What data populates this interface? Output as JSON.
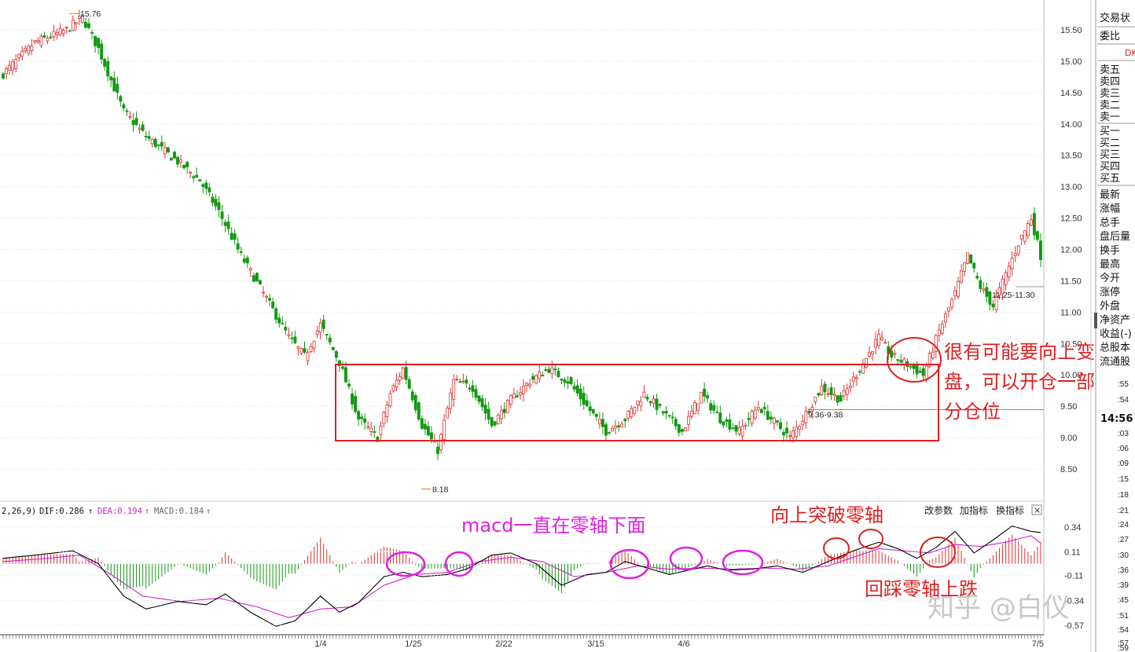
{
  "chart_data": {
    "type": "candlestick",
    "price_axis": {
      "ticks": [
        "15.50",
        "15.00",
        "14.50",
        "14.00",
        "13.50",
        "13.00",
        "12.50",
        "12.00",
        "11.50",
        "11.00",
        "10.50",
        "10.00",
        "9.50",
        "9.00",
        "8.50"
      ],
      "range": [
        8.15,
        15.85
      ]
    },
    "x_tick_labels": [
      "1/4",
      "1/25",
      "2/22",
      "3/15",
      "4/6",
      "7/5"
    ],
    "price_key_points": [
      [
        0,
        14.8
      ],
      [
        10,
        15.3
      ],
      [
        20,
        15.5
      ],
      [
        25,
        15.7
      ],
      [
        30,
        15.2
      ],
      [
        38,
        14.2
      ],
      [
        45,
        13.8
      ],
      [
        55,
        13.4
      ],
      [
        62,
        13.1
      ],
      [
        68,
        12.6
      ],
      [
        75,
        11.9
      ],
      [
        82,
        11.3
      ],
      [
        90,
        10.6
      ],
      [
        95,
        10.3
      ],
      [
        100,
        10.8
      ],
      [
        106,
        10.2
      ],
      [
        112,
        9.3
      ],
      [
        118,
        9.0
      ],
      [
        122,
        9.7
      ],
      [
        126,
        10.1
      ],
      [
        132,
        9.2
      ],
      [
        137,
        8.8
      ],
      [
        142,
        9.9
      ],
      [
        148,
        9.8
      ],
      [
        154,
        9.2
      ],
      [
        160,
        9.6
      ],
      [
        166,
        9.9
      ],
      [
        172,
        10.1
      ],
      [
        178,
        9.9
      ],
      [
        184,
        9.5
      ],
      [
        190,
        9.1
      ],
      [
        196,
        9.3
      ],
      [
        202,
        9.7
      ],
      [
        208,
        9.4
      ],
      [
        214,
        9.1
      ],
      [
        220,
        9.7
      ],
      [
        226,
        9.3
      ],
      [
        232,
        9.1
      ],
      [
        238,
        9.5
      ],
      [
        244,
        9.2
      ],
      [
        248,
        9.0
      ],
      [
        252,
        9.3
      ],
      [
        258,
        9.8
      ],
      [
        264,
        9.6
      ],
      [
        270,
        10.1
      ],
      [
        276,
        10.6
      ],
      [
        280,
        10.3
      ],
      [
        284,
        10.2
      ],
      [
        290,
        10.0
      ],
      [
        295,
        10.7
      ],
      [
        300,
        11.3
      ],
      [
        304,
        11.9
      ],
      [
        308,
        11.4
      ],
      [
        312,
        11.1
      ],
      [
        316,
        11.6
      ],
      [
        320,
        12.1
      ],
      [
        324,
        12.5
      ],
      [
        327,
        11.9
      ]
    ],
    "marks": [
      {
        "label": "15.76",
        "price": 15.76
      },
      {
        "label": "8.18",
        "price": 8.18
      },
      {
        "label": "9.36-9.38",
        "price": 9.37
      },
      {
        "label": "11.25-11.30",
        "price": 11.28
      }
    ],
    "box_price_range": [
      9.0,
      10.13
    ],
    "macd": {
      "label_params": "2,26,9)",
      "dif_label": "DIF:0.286",
      "dea_label": "DEA:0.194",
      "macd_label": "MACD:0.184",
      "axis_ticks": [
        "0.34",
        "0.11",
        "-0.11",
        "-0.34",
        "-0.57"
      ],
      "range": [
        -0.6,
        0.42
      ],
      "dif_key_points": [
        [
          0,
          0.05
        ],
        [
          10,
          0.08
        ],
        [
          22,
          0.12
        ],
        [
          30,
          0.0
        ],
        [
          38,
          -0.3
        ],
        [
          45,
          -0.42
        ],
        [
          55,
          -0.35
        ],
        [
          64,
          -0.38
        ],
        [
          70,
          -0.28
        ],
        [
          78,
          -0.45
        ],
        [
          86,
          -0.58
        ],
        [
          92,
          -0.53
        ],
        [
          100,
          -0.3
        ],
        [
          106,
          -0.45
        ],
        [
          112,
          -0.36
        ],
        [
          120,
          -0.12
        ],
        [
          126,
          -0.08
        ],
        [
          132,
          -0.12
        ],
        [
          140,
          -0.1
        ],
        [
          146,
          -0.05
        ],
        [
          154,
          0.08
        ],
        [
          160,
          0.1
        ],
        [
          168,
          0.0
        ],
        [
          176,
          -0.2
        ],
        [
          184,
          -0.1
        ],
        [
          190,
          -0.08
        ],
        [
          196,
          0.02
        ],
        [
          202,
          -0.03
        ],
        [
          210,
          -0.1
        ],
        [
          216,
          -0.06
        ],
        [
          222,
          -0.02
        ],
        [
          228,
          -0.06
        ],
        [
          236,
          -0.05
        ],
        [
          244,
          -0.02
        ],
        [
          252,
          -0.08
        ],
        [
          260,
          0.02
        ],
        [
          268,
          0.12
        ],
        [
          276,
          0.2
        ],
        [
          282,
          0.14
        ],
        [
          288,
          0.05
        ],
        [
          294,
          0.15
        ],
        [
          300,
          0.3
        ],
        [
          306,
          0.1
        ],
        [
          312,
          0.22
        ],
        [
          318,
          0.35
        ],
        [
          324,
          0.3
        ],
        [
          327,
          0.29
        ]
      ],
      "dea_key_points": [
        [
          0,
          0.02
        ],
        [
          14,
          0.05
        ],
        [
          24,
          0.08
        ],
        [
          34,
          -0.1
        ],
        [
          44,
          -0.3
        ],
        [
          56,
          -0.35
        ],
        [
          68,
          -0.32
        ],
        [
          80,
          -0.4
        ],
        [
          90,
          -0.5
        ],
        [
          100,
          -0.42
        ],
        [
          110,
          -0.4
        ],
        [
          120,
          -0.2
        ],
        [
          130,
          -0.1
        ],
        [
          140,
          -0.08
        ],
        [
          150,
          0.02
        ],
        [
          160,
          0.06
        ],
        [
          170,
          0.02
        ],
        [
          180,
          -0.12
        ],
        [
          190,
          -0.08
        ],
        [
          200,
          -0.02
        ],
        [
          210,
          -0.05
        ],
        [
          220,
          -0.04
        ],
        [
          230,
          -0.05
        ],
        [
          240,
          -0.04
        ],
        [
          250,
          -0.05
        ],
        [
          260,
          -0.02
        ],
        [
          268,
          0.06
        ],
        [
          276,
          0.14
        ],
        [
          284,
          0.12
        ],
        [
          292,
          0.1
        ],
        [
          300,
          0.18
        ],
        [
          308,
          0.16
        ],
        [
          316,
          0.2
        ],
        [
          324,
          0.26
        ],
        [
          327,
          0.19
        ]
      ]
    },
    "annotations": {
      "box_note": [
        "很有可能要向上变",
        "盘，可以开仓一部",
        "分仓位"
      ],
      "macd_below": "macd一直在零轴下面",
      "macd_break": "向上突破零轴",
      "macd_retrace": "回踩零轴上跌"
    }
  },
  "toolbar": {
    "change_params": "改参数",
    "add_indicator": "加指标",
    "switch_indicator": "换指标",
    "close": "×"
  },
  "side_panel": {
    "trade_status": "交易状",
    "weibi": "委比",
    "dk_marker": "DK",
    "sell_levels": [
      "卖五",
      "卖四",
      "卖三",
      "卖二",
      "卖一"
    ],
    "buy_levels": [
      "买一",
      "买二",
      "买三",
      "买四",
      "买五"
    ],
    "stats": [
      "最新",
      "涨幅",
      "总手",
      "盘后量",
      "换手",
      "最高",
      "今开",
      "涨停",
      "外盘",
      "净资产",
      "收益(-)",
      "总股本",
      "流通股"
    ],
    "time": "14:56",
    "time_ticks": [
      ":55",
      ":54",
      ":03",
      ":06",
      ":09",
      ":15",
      ":18",
      ":21",
      ":24",
      ":27",
      ":30",
      ":36",
      ":39",
      ":45",
      ":51",
      ":54",
      ":57",
      ":59"
    ]
  },
  "watermark": "知乎 @白仪",
  "colors": {
    "up": "#e03030",
    "down": "#119911",
    "dif": "#000000",
    "dea": "#d020d0",
    "box": "#e02020",
    "circle_mag": "#e020e0",
    "circle_red": "#e02020"
  }
}
